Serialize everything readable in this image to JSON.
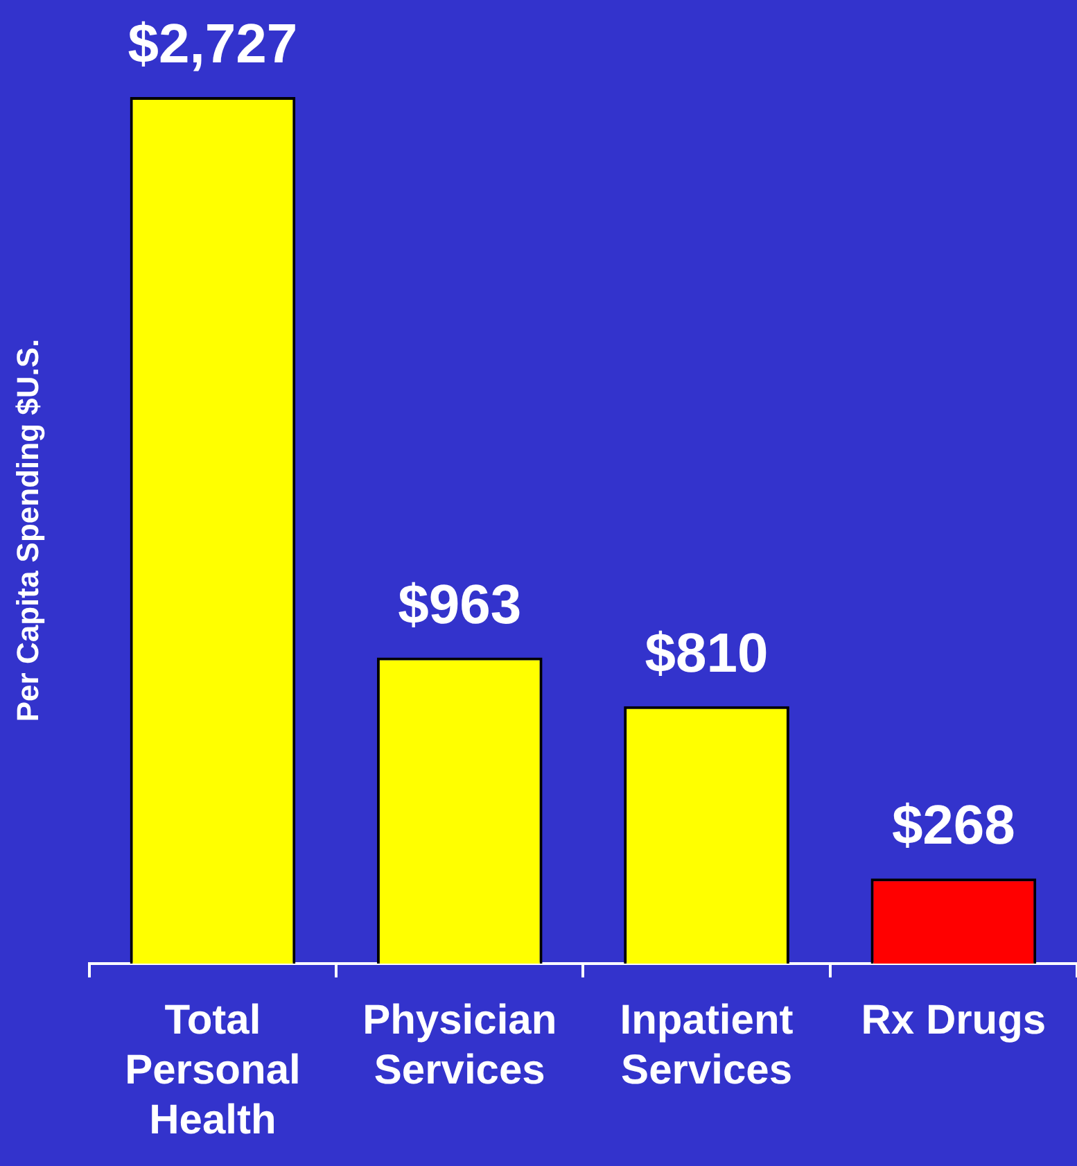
{
  "chart_data": {
    "type": "bar",
    "ylabel": "Per Capita Spending $U.S.",
    "categories": [
      "Total Personal Health",
      "Physician Services",
      "Inpatient Services",
      "Rx Drugs"
    ],
    "values": [
      2727,
      963,
      810,
      268
    ],
    "colors": [
      "#ffff00",
      "#ffff00",
      "#ffff00",
      "#ff0000"
    ],
    "value_labels": [
      "$2,727",
      "$963",
      "$810",
      "$268"
    ],
    "grid": false,
    "legend": false
  }
}
